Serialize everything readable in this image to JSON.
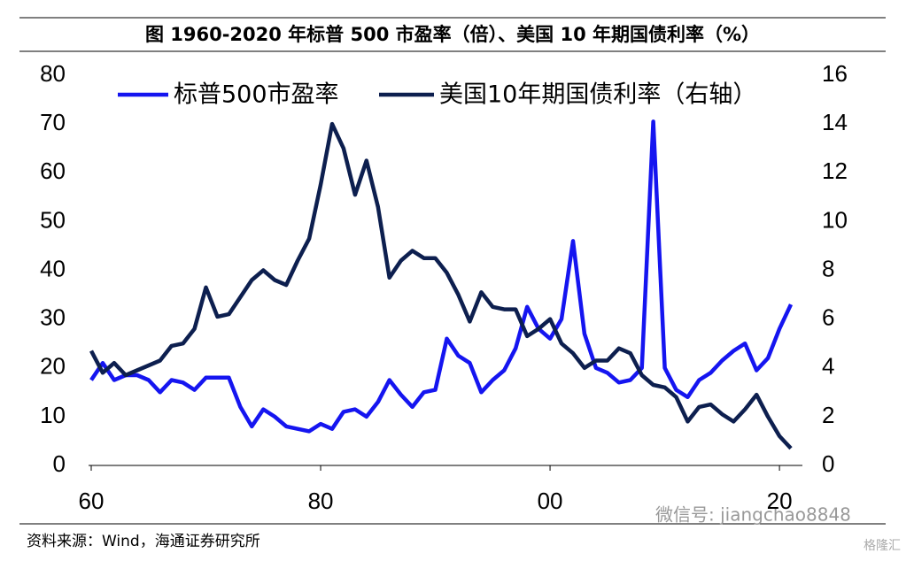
{
  "chart_data": {
    "type": "line",
    "title": "图  1960-2020 年标普 500 市盈率（倍）、美国 10 年期国债利率（%）",
    "source": "资料来源：Wind，海通证券研究所",
    "watermark": [
      "微信号: jiangchao8848",
      "格隆汇"
    ],
    "x": [
      1960,
      1961,
      1962,
      1963,
      1964,
      1965,
      1966,
      1967,
      1968,
      1969,
      1970,
      1971,
      1972,
      1973,
      1974,
      1975,
      1976,
      1977,
      1978,
      1979,
      1980,
      1981,
      1982,
      1983,
      1984,
      1985,
      1986,
      1987,
      1988,
      1989,
      1990,
      1991,
      1992,
      1993,
      1994,
      1995,
      1996,
      1997,
      1998,
      1999,
      2000,
      2001,
      2002,
      2003,
      2004,
      2005,
      2006,
      2007,
      2008,
      2009,
      2010,
      2011,
      2012,
      2013,
      2014,
      2015,
      2016,
      2017,
      2018,
      2019,
      2020,
      2021
    ],
    "series": [
      {
        "name": "标普500市盈率",
        "color": "#1515f0",
        "axis": "y",
        "values": [
          17.5,
          21,
          17.5,
          18.5,
          18.5,
          17.5,
          15,
          17.5,
          17,
          15.5,
          18,
          18,
          18,
          12,
          8,
          11.5,
          10,
          8,
          7.5,
          7,
          8.5,
          7.5,
          11,
          11.5,
          10,
          13,
          17.5,
          14.5,
          12,
          15,
          15.5,
          26,
          22.5,
          21,
          15,
          17.5,
          19.5,
          24,
          32.5,
          28,
          26,
          30,
          46,
          27,
          20,
          19,
          17,
          17.5,
          20,
          70.5,
          20,
          15.5,
          14,
          17.5,
          19,
          21.5,
          23.5,
          25,
          19.5,
          22,
          28,
          33
        ]
      },
      {
        "name": "美国10年期国债利率（右轴）",
        "color": "#0d1f4f",
        "axis": "y2",
        "values": [
          4.7,
          3.8,
          4.2,
          3.7,
          3.9,
          4.1,
          4.3,
          4.9,
          5.0,
          5.6,
          7.3,
          6.1,
          6.2,
          6.9,
          7.6,
          8.0,
          7.6,
          7.4,
          8.4,
          9.3,
          11.5,
          14.0,
          13.0,
          11.1,
          12.5,
          10.6,
          7.7,
          8.4,
          8.8,
          8.5,
          8.5,
          7.9,
          7.0,
          5.9,
          7.1,
          6.5,
          6.4,
          6.4,
          5.3,
          5.6,
          6.0,
          5.0,
          4.6,
          4.0,
          4.3,
          4.3,
          4.8,
          4.6,
          3.7,
          3.3,
          3.2,
          2.8,
          1.8,
          2.4,
          2.5,
          2.1,
          1.8,
          2.3,
          2.9,
          2.0,
          1.2,
          0.7
        ]
      }
    ],
    "xlim": [
      1960,
      2022
    ],
    "xticks": [
      {
        "value": 1960,
        "label": "60"
      },
      {
        "value": 1980,
        "label": "80"
      },
      {
        "value": 2000,
        "label": "00"
      },
      {
        "value": 2020,
        "label": "20"
      }
    ],
    "ylim": [
      0,
      80
    ],
    "yticks": [
      0,
      10,
      20,
      30,
      40,
      50,
      60,
      70,
      80
    ],
    "y2lim": [
      0,
      16
    ],
    "y2ticks": [
      0,
      2,
      4,
      6,
      8,
      10,
      12,
      14,
      16
    ],
    "legend": "top",
    "grid": false
  }
}
